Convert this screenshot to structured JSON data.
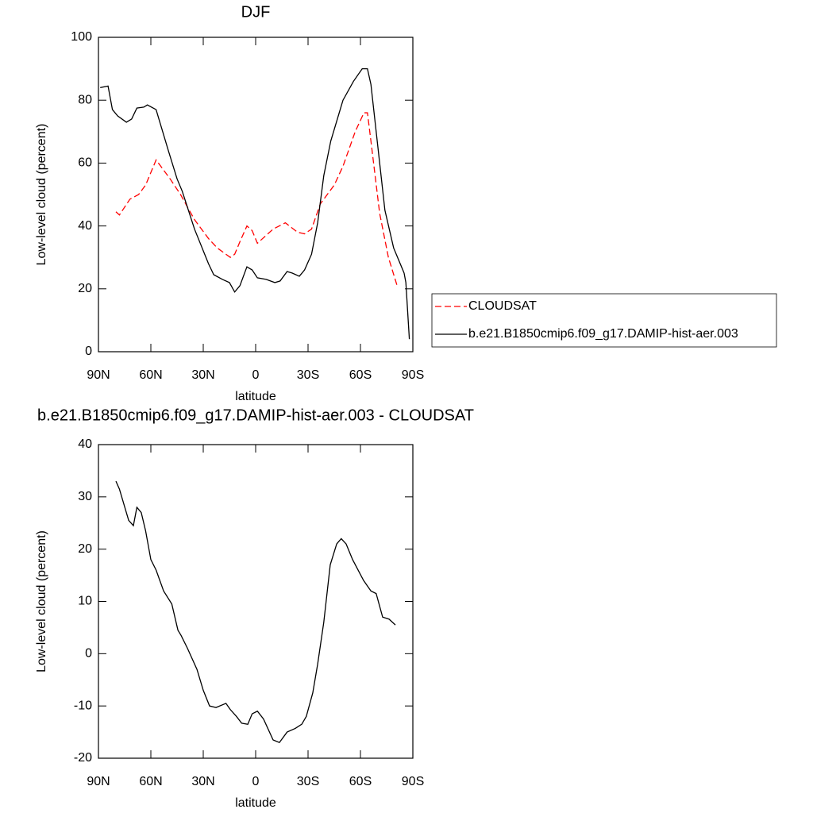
{
  "chart_data": [
    {
      "type": "line",
      "title": "DJF",
      "y_label": "Low-level cloud (percent)",
      "x_label": "latitude",
      "xlim": [
        90,
        -90
      ],
      "ylim": [
        0,
        100
      ],
      "xticks": [
        {
          "value": 90,
          "label": "90N"
        },
        {
          "value": 60,
          "label": "60N"
        },
        {
          "value": 30,
          "label": "30N"
        },
        0,
        {
          "value": -30,
          "label": "30S"
        },
        {
          "value": -60,
          "label": "60S"
        },
        {
          "value": -90,
          "label": "90S"
        }
      ],
      "yticks": [
        0,
        20,
        40,
        60,
        80,
        100
      ],
      "legend": "outside-right",
      "series": [
        {
          "name": "CLOUDSAT",
          "color": "#ff0000",
          "dash": "dashed",
          "x": [
            80,
            78,
            72,
            67,
            63,
            57,
            49,
            43,
            35,
            27,
            22,
            14.5,
            12,
            9,
            5,
            2,
            -1,
            -4,
            -10,
            -17,
            -24,
            -28,
            -32,
            -37,
            -45,
            -50,
            -57,
            -62,
            -64,
            -66,
            -71,
            -76,
            -81
          ],
          "values": [
            44.5,
            43.5,
            48.5,
            50,
            53,
            61,
            55,
            50,
            42,
            36,
            33,
            30,
            31,
            35,
            40,
            38.5,
            34.5,
            36,
            39,
            41,
            38,
            37.5,
            39,
            47,
            53,
            59,
            70,
            76,
            76,
            67,
            44,
            30,
            21
          ]
        },
        {
          "name": "b.e21.B1850cmip6.f09_g17.DAMIP-hist-aer.003",
          "color": "#000000",
          "dash": "solid",
          "x": [
            89,
            84.5,
            82,
            79,
            74,
            71,
            68,
            64,
            62,
            57,
            50,
            45,
            42,
            35,
            27,
            24,
            19,
            15,
            12,
            9,
            5,
            2,
            -1,
            -6,
            -11,
            -14,
            -18,
            -21,
            -25,
            -28,
            -32,
            -35.5,
            -39,
            -43,
            -50,
            -56,
            -61,
            -64,
            -66,
            -70,
            -74,
            -79,
            -85,
            -86,
            -88
          ],
          "values": [
            84,
            84.5,
            77,
            75,
            73,
            74,
            77.5,
            77.8,
            78.5,
            77,
            64,
            55,
            51,
            39,
            28,
            24.5,
            23,
            22,
            19,
            21,
            27,
            26,
            23.5,
            23,
            22,
            22.5,
            25.5,
            25,
            24,
            26,
            31,
            41,
            56,
            67,
            80,
            86,
            90,
            90,
            85,
            65,
            45,
            33,
            25,
            22,
            4
          ]
        }
      ]
    },
    {
      "type": "line",
      "title": "b.e21.B1850cmip6.f09_g17.DAMIP-hist-aer.003 - CLOUDSAT",
      "y_label": "Low-level cloud (percent)",
      "x_label": "latitude",
      "xlim": [
        90,
        -90
      ],
      "ylim": [
        -20,
        40
      ],
      "xticks": [
        {
          "value": 90,
          "label": "90N"
        },
        {
          "value": 60,
          "label": "60N"
        },
        {
          "value": 30,
          "label": "30N"
        },
        0,
        {
          "value": -30,
          "label": "30S"
        },
        {
          "value": -60,
          "label": "60S"
        },
        {
          "value": -90,
          "label": "90S"
        }
      ],
      "yticks": [
        -20,
        -10,
        0,
        10,
        20,
        30,
        40
      ],
      "color": "#000000",
      "x": [
        80,
        78,
        72.7,
        70,
        68,
        65.5,
        63,
        60,
        57,
        52.7,
        48,
        44.5,
        42.7,
        39,
        33.6,
        30,
        26.4,
        22.7,
        17,
        14.5,
        11,
        8,
        4.5,
        2,
        -1,
        -4.5,
        -10,
        -13.6,
        -18,
        -22.7,
        -26.4,
        -29,
        -32.7,
        -35.5,
        -39,
        -42.7,
        -46.4,
        -49,
        -51.8,
        -55.5,
        -61.8,
        -66,
        -69,
        -72.7,
        -76.4,
        -80
      ],
      "values": [
        33,
        31.5,
        25.5,
        24.5,
        28,
        27,
        23.5,
        18,
        16,
        12,
        9.5,
        4.5,
        3.5,
        1,
        -3,
        -7,
        -10,
        -10.3,
        -9.5,
        -10.7,
        -12,
        -13.3,
        -13.5,
        -11.5,
        -11,
        -12.5,
        -16.5,
        -17,
        -15,
        -14.3,
        -13.5,
        -12,
        -7.5,
        -2,
        6,
        17,
        21,
        22,
        21,
        18,
        14,
        12,
        11.5,
        7,
        6.6,
        5.5
      ]
    }
  ]
}
